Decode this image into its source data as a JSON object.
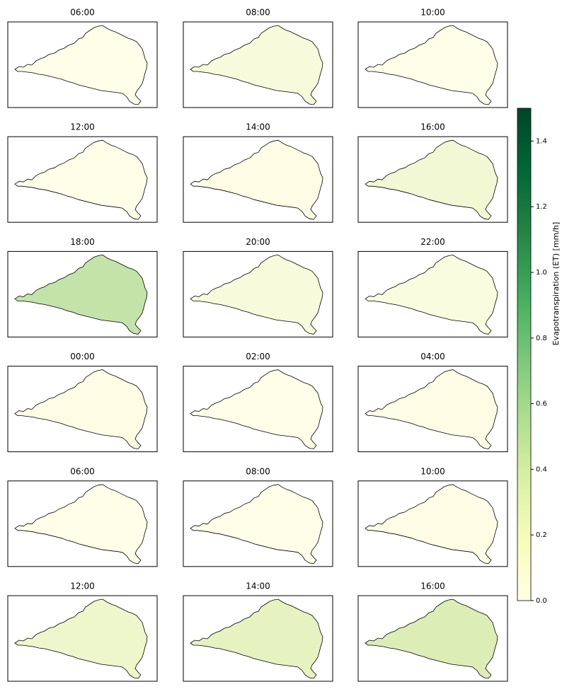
{
  "panels": [
    {
      "title": "06:00",
      "fill": "#fefee9"
    },
    {
      "title": "08:00",
      "fill": "#f8fbdb"
    },
    {
      "title": "10:00",
      "fill": "#fefee9"
    },
    {
      "title": "12:00",
      "fill": "#fefee9"
    },
    {
      "title": "14:00",
      "fill": "#fcfde4"
    },
    {
      "title": "16:00",
      "fill": "#f3f8d4"
    },
    {
      "title": "18:00",
      "fill": "#c4e3a8"
    },
    {
      "title": "20:00",
      "fill": "#f7fbdc"
    },
    {
      "title": "22:00",
      "fill": "#fafcdf"
    },
    {
      "title": "00:00",
      "fill": "#fdfde6"
    },
    {
      "title": "02:00",
      "fill": "#fefee9"
    },
    {
      "title": "04:00",
      "fill": "#fdfde6"
    },
    {
      "title": "06:00",
      "fill": "#fefee9"
    },
    {
      "title": "08:00",
      "fill": "#fefee9"
    },
    {
      "title": "10:00",
      "fill": "#fcfde4"
    },
    {
      "title": "12:00",
      "fill": "#eef6cb"
    },
    {
      "title": "14:00",
      "fill": "#e6f2c0"
    },
    {
      "title": "16:00",
      "fill": "#dcedb6"
    }
  ],
  "colorbar": {
    "label": "Evapotranspiration (ET) [mm/h]",
    "lim": [
      0,
      1.5
    ],
    "ticks": [
      {
        "value": 0,
        "label": "0.0"
      },
      0.2,
      0.4,
      0.6,
      0.8,
      {
        "value": 1,
        "label": "1.0"
      },
      1.2,
      1.4
    ]
  }
}
